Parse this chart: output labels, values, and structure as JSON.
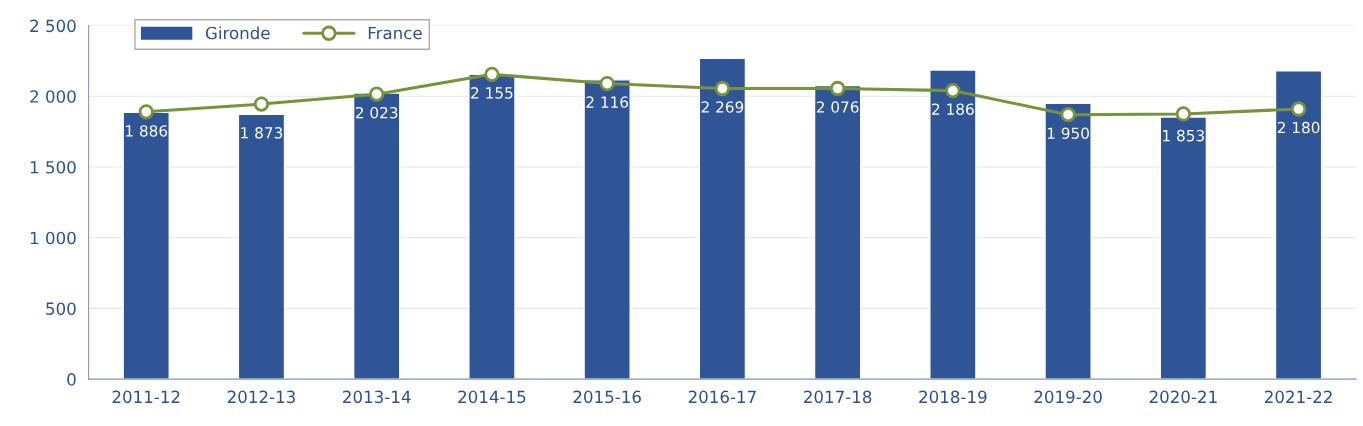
{
  "chart_data": {
    "type": "bar",
    "categories": [
      "2011-12",
      "2012-13",
      "2013-14",
      "2014-15",
      "2015-16",
      "2016-17",
      "2017-18",
      "2018-19",
      "2019-20",
      "2020-21",
      "2021-22"
    ],
    "series": [
      {
        "name": "Gironde",
        "color": "#2f5597",
        "values": [
          1886,
          1873,
          2023,
          2155,
          2116,
          2269,
          2076,
          2186,
          1950,
          1853,
          2180
        ],
        "value_labels": [
          "1 886",
          "1 873",
          "2 023",
          "2 155",
          "2 116",
          "2 269",
          "2 076",
          "2 186",
          "1 950",
          "1 853",
          "2 180"
        ]
      },
      {
        "name": "France",
        "type": "line",
        "color": "#77933c",
        "marker": "circle",
        "values": [
          1890,
          1945,
          2015,
          2155,
          2090,
          2055,
          2055,
          2040,
          1870,
          1875,
          1910
        ]
      }
    ],
    "ylim": [
      0,
      2500
    ],
    "yticks": [
      0,
      500,
      {
        "value": 1000,
        "label": "1 000"
      },
      {
        "value": 1500,
        "label": "1 500"
      },
      {
        "value": 2000,
        "label": "2 000"
      },
      {
        "value": 2500,
        "label": "2 500"
      }
    ],
    "grid": "y",
    "legend": "top left"
  }
}
